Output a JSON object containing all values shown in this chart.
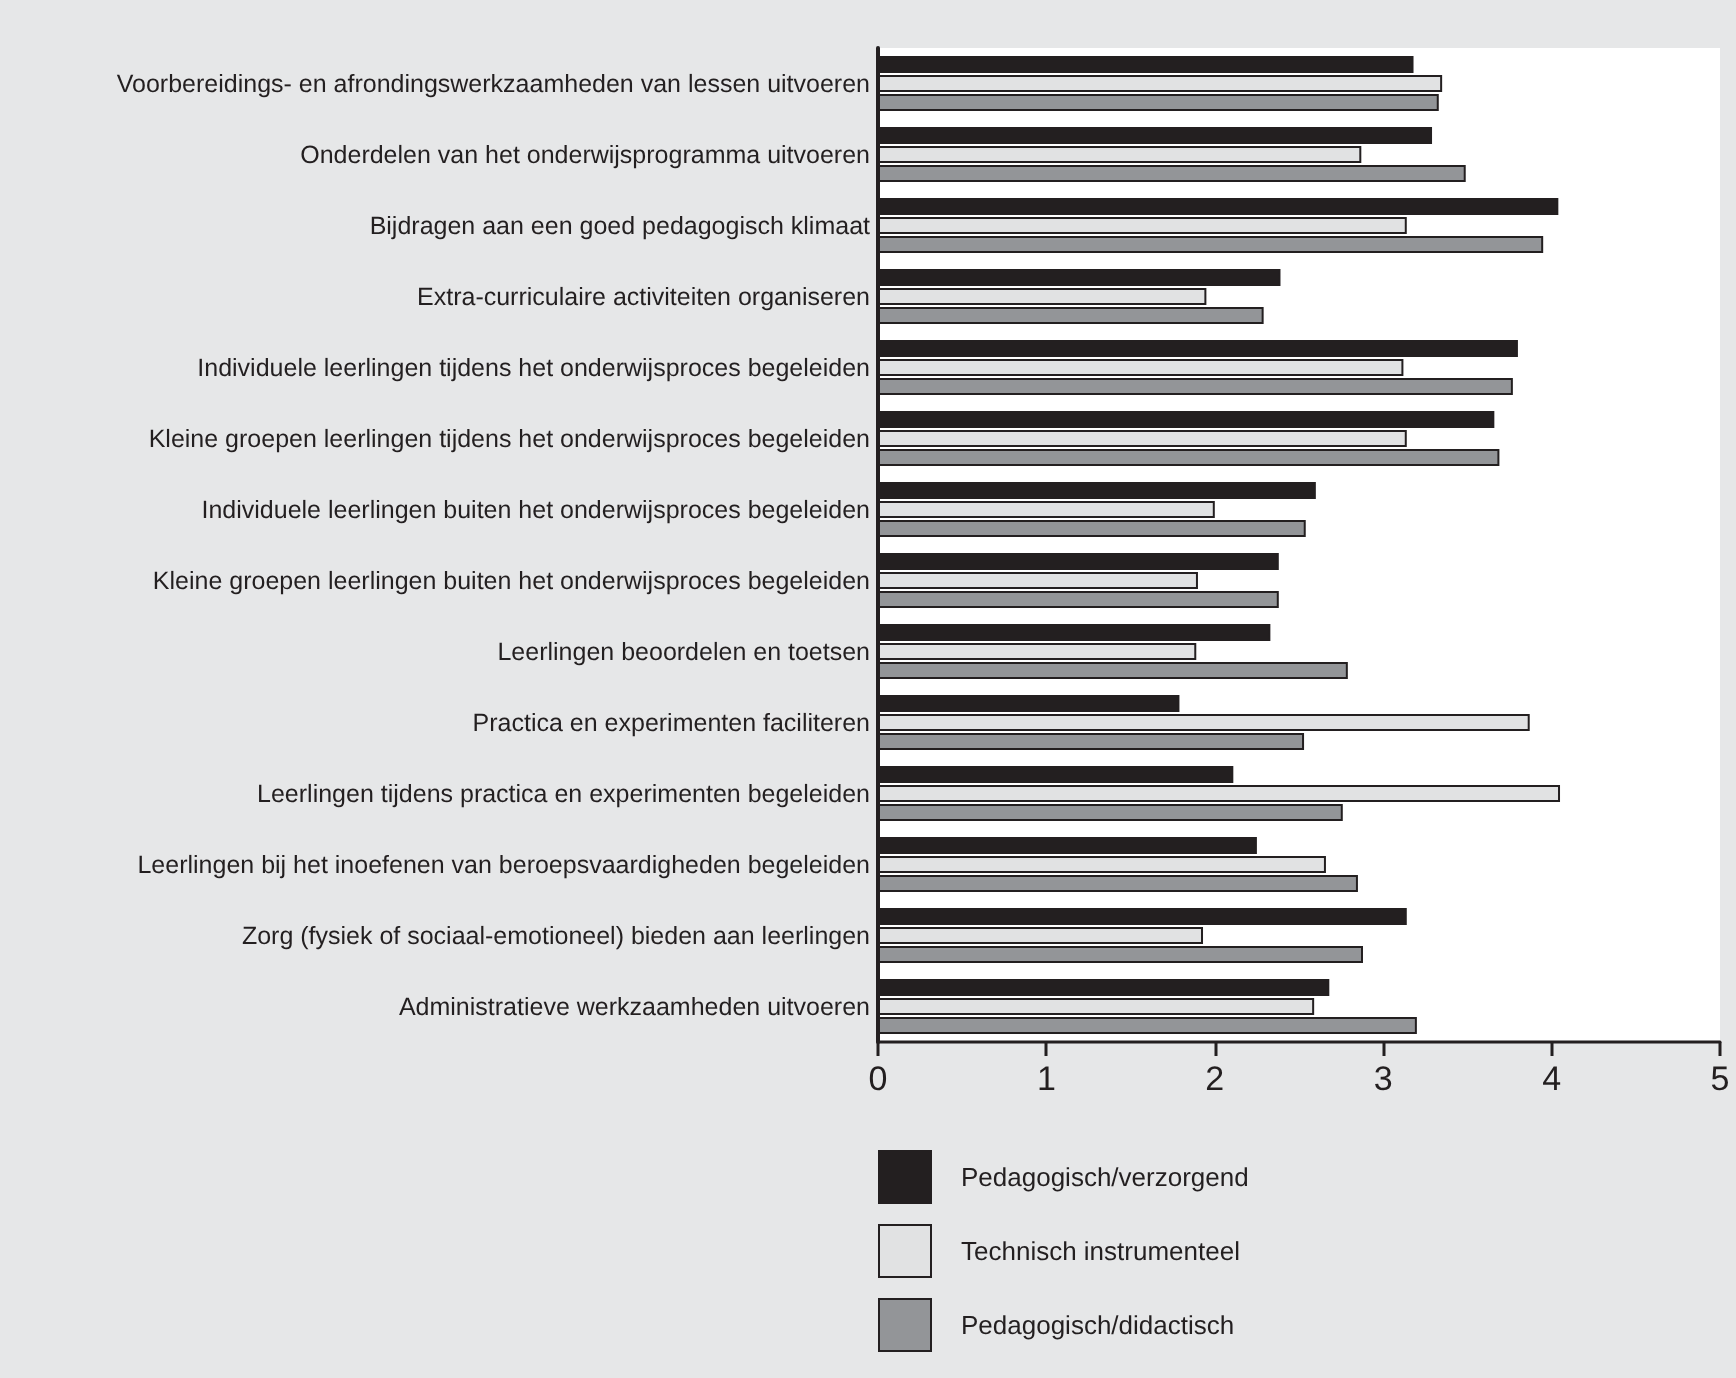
{
  "chart_data": {
    "type": "bar",
    "orientation": "horizontal",
    "categories": [
      "Voorbereidings- en afrondingswerkzaamheden van lessen uitvoeren",
      "Onderdelen van het onderwijsprogramma uitvoeren",
      "Bijdragen aan een goed pedagogisch klimaat",
      "Extra-curriculaire activiteiten organiseren",
      "Individuele leerlingen tijdens het onderwijsproces begeleiden",
      "Kleine groepen leerlingen tijdens het onderwijsproces begeleiden",
      "Individuele leerlingen buiten het onderwijsproces begeleiden",
      "Kleine groepen leerlingen buiten het onderwijsproces begeleiden",
      "Leerlingen beoordelen en toetsen",
      "Practica en experimenten faciliteren",
      "Leerlingen tijdens practica en experimenten begeleiden",
      "Leerlingen bij het inoefenen van beroepsvaardigheden begeleiden",
      "Zorg (fysiek of sociaal-emotioneel) bieden aan leerlingen",
      "Administratieve werkzaamheden uitvoeren"
    ],
    "series": [
      {
        "name": "Pedagogisch/verzorgend",
        "color": "#231f20",
        "values": [
          3.18,
          3.29,
          4.04,
          2.39,
          3.8,
          3.66,
          2.6,
          2.38,
          2.33,
          1.79,
          2.11,
          2.25,
          3.14,
          2.68
        ]
      },
      {
        "name": "Technisch instrumenteel",
        "color": "#e1e2e3",
        "values": [
          3.35,
          2.87,
          3.14,
          1.95,
          3.12,
          3.14,
          2.0,
          1.9,
          1.89,
          3.87,
          4.05,
          2.66,
          1.93,
          2.59
        ]
      },
      {
        "name": "Pedagogisch/didactisch",
        "color": "#939598",
        "values": [
          3.33,
          3.49,
          3.95,
          2.29,
          3.77,
          3.69,
          2.54,
          2.38,
          2.79,
          2.53,
          2.76,
          2.85,
          2.88,
          3.2
        ]
      }
    ],
    "xlim": [
      0,
      5
    ],
    "xticks": [
      0,
      1,
      2,
      3,
      4,
      5
    ],
    "grid": false,
    "legend": "bottom"
  }
}
